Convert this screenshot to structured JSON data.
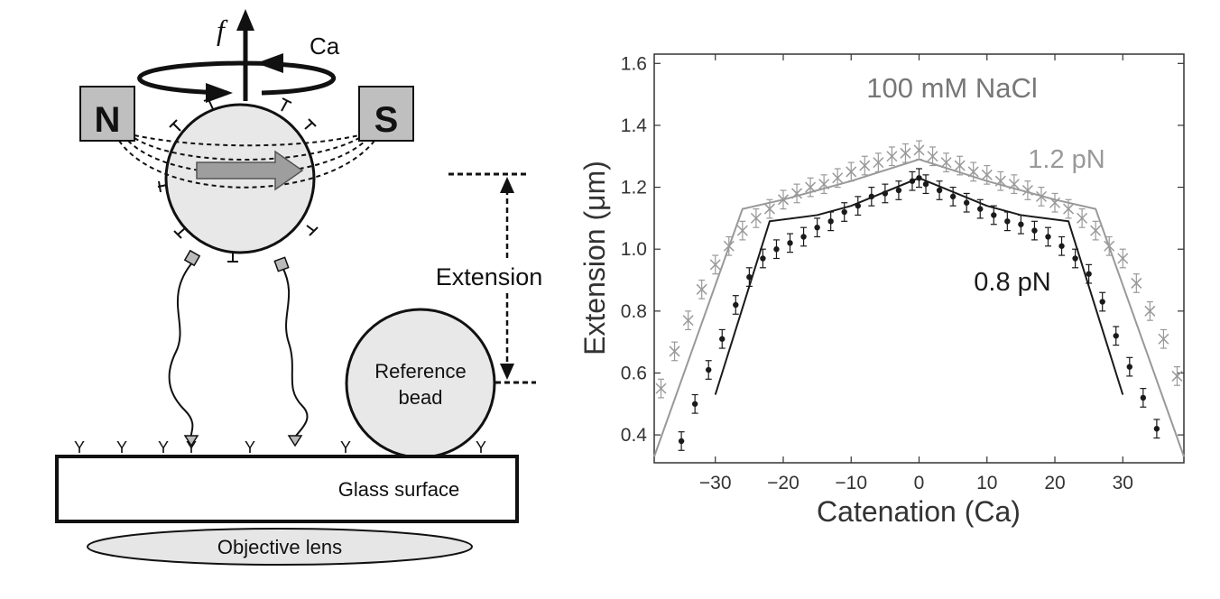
{
  "schematic": {
    "force_label": "f",
    "twist_label": "Ca",
    "magnet_north": "N",
    "magnet_south": "S",
    "extension_label": "Extension",
    "reference_bead_line1": "Reference",
    "reference_bead_line2": "bead",
    "glass_surface_label": "Glass surface",
    "objective_lens_label": "Objective lens"
  },
  "chart_data": {
    "type": "scatter",
    "title": "100 mM NaCl",
    "xlabel": "Catenation (Ca)",
    "ylabel": "Extension (μm)",
    "xlim": [
      -39,
      39
    ],
    "ylim": [
      0.31,
      1.63
    ],
    "xticks": [
      -30,
      -20,
      -10,
      0,
      10,
      20,
      30
    ],
    "xtick_labels": [
      "−30",
      "−20",
      "−10",
      "0",
      "10",
      "20",
      "30"
    ],
    "yticks": [
      0.4,
      0.6,
      0.8,
      1.0,
      1.2,
      1.4,
      1.6
    ],
    "ytick_labels": [
      "0.4",
      "0.6",
      "0.8",
      "1.0",
      "1.2",
      "1.4",
      "1.6"
    ],
    "grid": false,
    "colors": {
      "high_force": "#999999",
      "low_force": "#1a1a1a",
      "title": "#777777",
      "axis": "#333333"
    },
    "series": [
      {
        "name": "1.2 pN",
        "marker": "x",
        "x": [
          -38,
          -36,
          -34,
          -32,
          -30,
          -28,
          -26,
          -24,
          -22,
          -20,
          -18,
          -16,
          -14,
          -12,
          -10,
          -8,
          -6,
          -4,
          -2,
          0,
          2,
          4,
          6,
          8,
          10,
          12,
          14,
          16,
          18,
          20,
          22,
          24,
          26,
          28,
          30,
          32,
          34,
          36,
          38
        ],
        "y": [
          0.55,
          0.67,
          0.77,
          0.87,
          0.95,
          1.01,
          1.06,
          1.1,
          1.13,
          1.16,
          1.18,
          1.2,
          1.21,
          1.23,
          1.25,
          1.27,
          1.28,
          1.3,
          1.31,
          1.32,
          1.3,
          1.28,
          1.27,
          1.25,
          1.24,
          1.22,
          1.21,
          1.19,
          1.17,
          1.15,
          1.13,
          1.1,
          1.06,
          1.01,
          0.97,
          0.89,
          0.8,
          0.71,
          0.59
        ],
        "error": 0.03
      },
      {
        "name": "0.8 pN",
        "marker": "dot",
        "x": [
          -35,
          -33,
          -31,
          -29,
          -27,
          -25,
          -23,
          -21,
          -19,
          -17,
          -15,
          -13,
          -11,
          -9,
          -7,
          -5,
          -3,
          -1,
          0,
          1,
          3,
          5,
          7,
          9,
          11,
          13,
          15,
          17,
          19,
          21,
          23,
          25,
          27,
          29,
          31,
          33,
          35
        ],
        "y": [
          0.38,
          0.5,
          0.61,
          0.71,
          0.82,
          0.91,
          0.97,
          1.0,
          1.02,
          1.04,
          1.07,
          1.09,
          1.12,
          1.14,
          1.17,
          1.18,
          1.19,
          1.22,
          1.23,
          1.21,
          1.19,
          1.17,
          1.15,
          1.13,
          1.11,
          1.09,
          1.08,
          1.06,
          1.04,
          1.01,
          0.97,
          0.92,
          0.83,
          0.72,
          0.62,
          0.52,
          0.42
        ],
        "error": 0.03
      }
    ],
    "model_curves": [
      {
        "name": "1.2 pN",
        "x": [
          -39,
          -26,
          -20,
          -10,
          0,
          10,
          20,
          26,
          39
        ],
        "y": [
          0.33,
          1.13,
          1.16,
          1.22,
          1.29,
          1.22,
          1.16,
          1.13,
          0.33
        ]
      },
      {
        "name": "0.8 pN",
        "x": [
          -30,
          -22,
          -15,
          -10,
          0,
          10,
          15,
          22,
          30
        ],
        "y": [
          0.53,
          1.09,
          1.11,
          1.14,
          1.23,
          1.14,
          1.11,
          1.09,
          0.53
        ]
      }
    ]
  }
}
